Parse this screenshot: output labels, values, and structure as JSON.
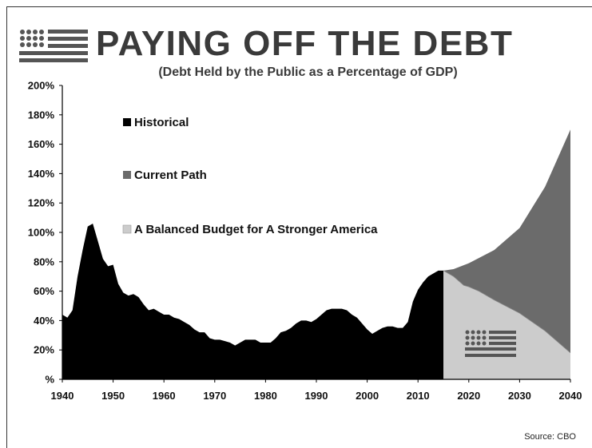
{
  "header": {
    "title": "PAYING OFF THE DEBT",
    "subtitle": "(Debt Held by the Public as a Percentage of GDP)"
  },
  "footer": {
    "source": "Source: CBO"
  },
  "icons": {
    "logo": "flag-icon"
  },
  "colors": {
    "historical": "#000000",
    "current_path": "#6b6b6b",
    "balanced_budget": "#cccccc"
  },
  "chart_data": {
    "type": "area",
    "title": "PAYING OFF THE DEBT",
    "subtitle": "(Debt Held by the Public as a Percentage of GDP)",
    "xlabel": "",
    "ylabel": "",
    "xlim": [
      1940,
      2040
    ],
    "ylim": [
      0,
      200
    ],
    "x_ticks": [
      1940,
      1950,
      1960,
      1970,
      1980,
      1990,
      2000,
      2010,
      2020,
      2030,
      2040
    ],
    "y_ticks": [
      0,
      20,
      40,
      60,
      80,
      100,
      120,
      140,
      160,
      180,
      200
    ],
    "y_tick_labels": [
      "%",
      "20%",
      "40%",
      "60%",
      "80%",
      "100%",
      "120%",
      "140%",
      "160%",
      "180%",
      "200%"
    ],
    "grid": false,
    "legend": "top-left",
    "series": [
      {
        "name": "Historical",
        "color": "#000000",
        "x": [
          1940,
          1941,
          1942,
          1943,
          1944,
          1945,
          1946,
          1947,
          1948,
          1949,
          1950,
          1951,
          1952,
          1953,
          1954,
          1955,
          1956,
          1957,
          1958,
          1959,
          1960,
          1961,
          1962,
          1963,
          1964,
          1965,
          1966,
          1967,
          1968,
          1969,
          1970,
          1971,
          1972,
          1973,
          1974,
          1975,
          1976,
          1977,
          1978,
          1979,
          1980,
          1981,
          1982,
          1983,
          1984,
          1985,
          1986,
          1987,
          1988,
          1989,
          1990,
          1991,
          1992,
          1993,
          1994,
          1995,
          1996,
          1997,
          1998,
          1999,
          2000,
          2001,
          2002,
          2003,
          2004,
          2005,
          2006,
          2007,
          2008,
          2009,
          2010,
          2011,
          2012,
          2013,
          2014,
          2015
        ],
        "values": [
          44,
          42,
          47,
          70,
          88,
          104,
          106,
          94,
          82,
          77,
          78,
          65,
          59,
          57,
          58,
          56,
          51,
          47,
          48,
          46,
          44,
          44,
          42,
          41,
          39,
          37,
          34,
          32,
          32,
          28,
          27,
          27,
          26,
          25,
          23,
          25,
          27,
          27,
          27,
          25,
          25,
          25,
          28,
          32,
          33,
          35,
          38,
          40,
          40,
          39,
          41,
          44,
          47,
          48,
          48,
          48,
          47,
          44,
          42,
          38,
          34,
          31,
          33,
          35,
          36,
          36,
          35,
          35,
          39,
          53,
          61,
          66,
          70,
          72,
          74,
          74
        ]
      },
      {
        "name": "Current Path",
        "color": "#6b6b6b",
        "x": [
          2015,
          2017,
          2020,
          2025,
          2030,
          2035,
          2040
        ],
        "values": [
          74,
          75,
          79,
          88,
          103,
          131,
          170
        ]
      },
      {
        "name": "A Balanced Budget for A Stronger America",
        "color": "#cccccc",
        "x": [
          2015,
          2016,
          2017,
          2018,
          2019,
          2020,
          2022,
          2025,
          2030,
          2035,
          2040
        ],
        "values": [
          74,
          72,
          70,
          67,
          64,
          63,
          60,
          54,
          45,
          33,
          18
        ]
      }
    ]
  }
}
